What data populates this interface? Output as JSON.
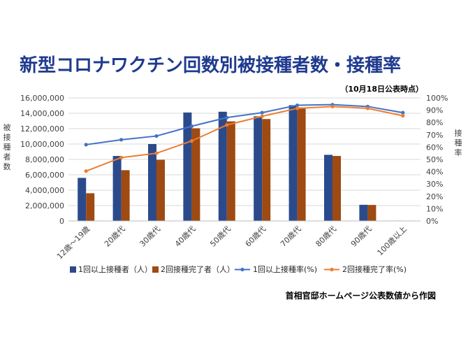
{
  "chart_data": {
    "type": "bar",
    "title": "新型コロナワクチン回数別被接種者数・接種率",
    "subtitle": "（10月18日公表時点）",
    "source_note": "首相官邸ホームページ公表数値から作図",
    "ylabel_left": "被接種者数",
    "ylabel_right": "接種率",
    "categories": [
      "12歳～19歳",
      "20歳代",
      "30歳代",
      "40歳代",
      "50歳代",
      "60歳代",
      "70歳代",
      "80歳代",
      "90歳代",
      "100歳以上"
    ],
    "y_left_ticks": [
      "0",
      "2,000,000",
      "4,000,000",
      "6,000,000",
      "8,000,000",
      "10,000,000",
      "12,000,000",
      "14,000,000",
      "16,000,000"
    ],
    "y_right_ticks": [
      "0%",
      "10%",
      "20%",
      "30%",
      "40%",
      "50%",
      "60%",
      "70%",
      "80%",
      "90%",
      "100%"
    ],
    "ylim_left": [
      0,
      16000000
    ],
    "ylim_right": [
      0,
      100
    ],
    "legend_position": "bottom",
    "grid": true,
    "series": [
      {
        "name": "1回以上接種者（人）",
        "kind": "bar",
        "axis": "left",
        "color": "#2b4a8b",
        "values": [
          5600000,
          8450000,
          10000000,
          14100000,
          14200000,
          13600000,
          15050000,
          8600000,
          2100000,
          50000
        ]
      },
      {
        "name": "2回接種完了者（人）",
        "kind": "bar",
        "axis": "left",
        "color": "#9e4a12",
        "values": [
          3600000,
          6600000,
          7950000,
          12050000,
          12950000,
          13250000,
          14750000,
          8450000,
          2080000,
          45000
        ]
      },
      {
        "name": "1回以上接種率(%)",
        "kind": "line",
        "axis": "right",
        "color": "#4472c4",
        "values": [
          62,
          66,
          69,
          77,
          84,
          88,
          94,
          94.5,
          93,
          88
        ]
      },
      {
        "name": "2回接種完了率(%)",
        "kind": "line",
        "axis": "right",
        "color": "#ed7d31",
        "values": [
          40.5,
          51.5,
          55,
          65,
          78,
          85,
          91.5,
          93,
          91.5,
          85.5
        ]
      }
    ]
  }
}
